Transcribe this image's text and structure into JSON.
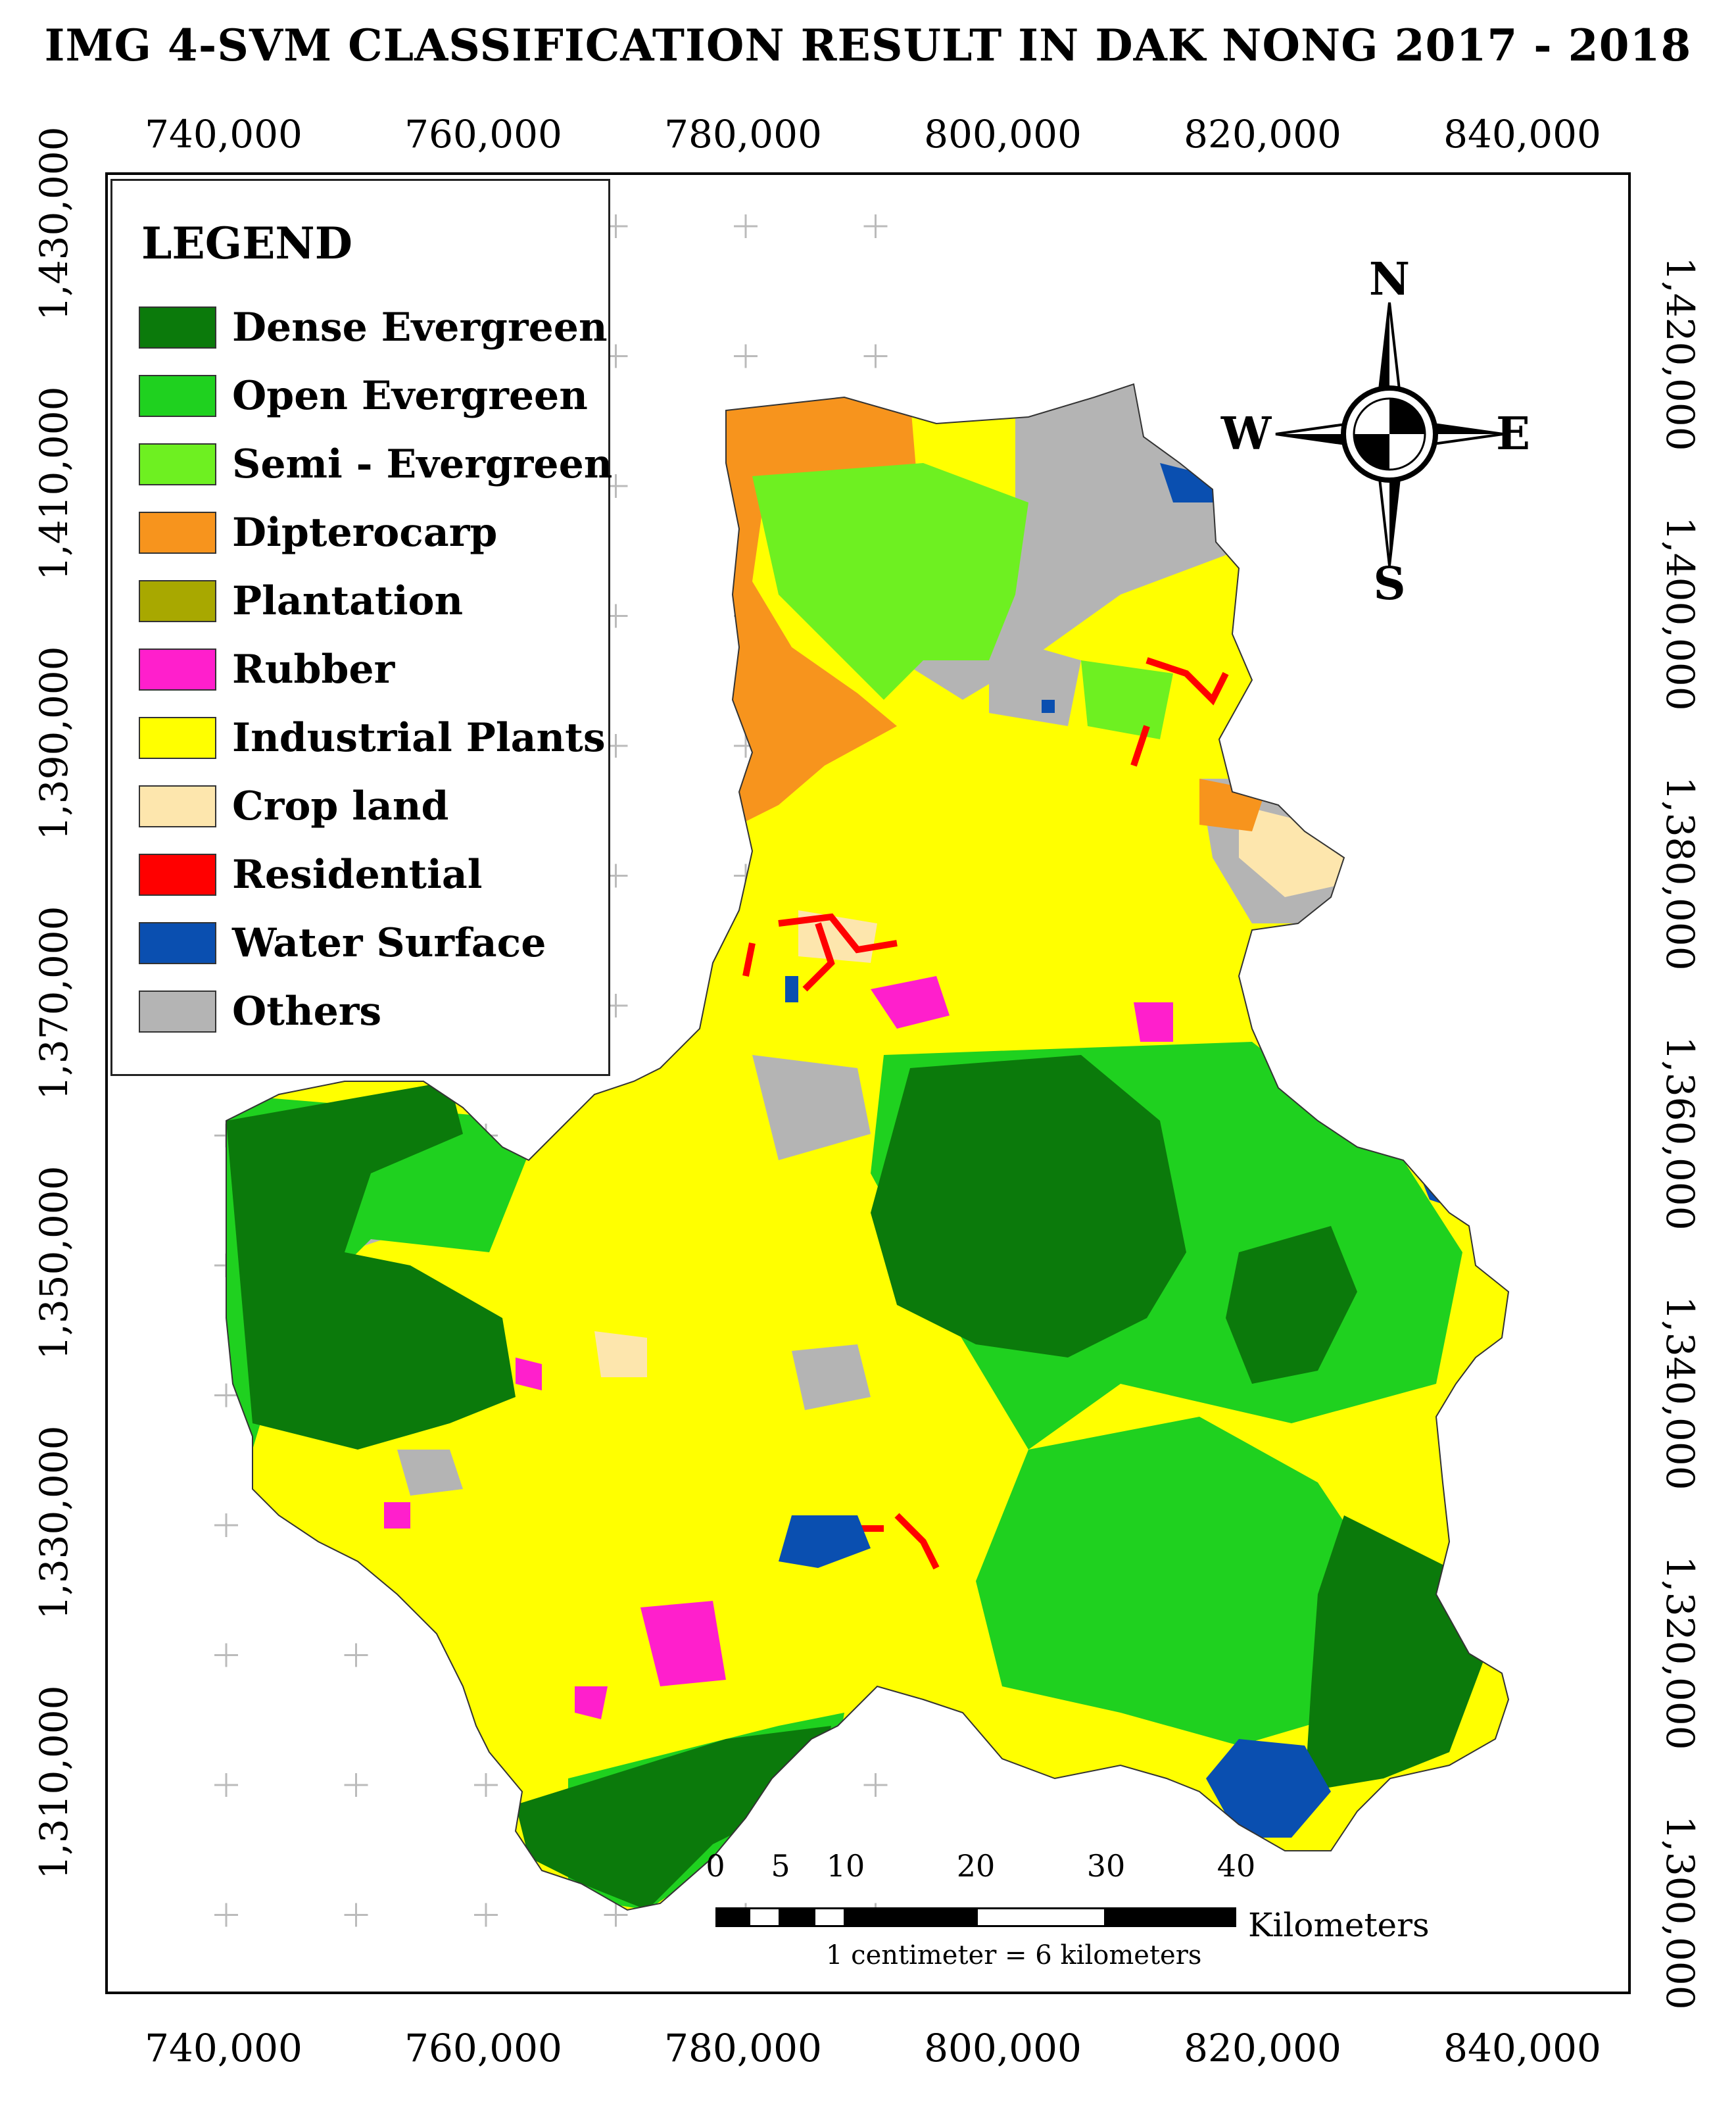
{
  "title": "IMG 4-SVM  CLASSIFICATION RESULT IN DAK NONG 2017 - 2018",
  "x_labels": [
    "740,000",
    "760,000",
    "780,000",
    "800,000",
    "820,000",
    "840,000"
  ],
  "y_labels_left": [
    "1,430,000",
    "1,410,000",
    "1,390,000",
    "1,370,000",
    "1,350,000",
    "1,330,000",
    "1,310,000"
  ],
  "y_labels_right": [
    "1,420,000",
    "1,400,000",
    "1,380,000",
    "1,360,000",
    "1,340,000",
    "1,320,000",
    "1,300,000"
  ],
  "legend": {
    "title": "LEGEND",
    "items": [
      {
        "label": "Dense Evergreen",
        "color": "#0b7a0b"
      },
      {
        "label": "Open Evergreen",
        "color": "#1fd11f"
      },
      {
        "label": "Semi - Evergreen",
        "color": "#6ef021"
      },
      {
        "label": "Dipterocarp",
        "color": "#f7941d"
      },
      {
        "label": "Plantation",
        "color": "#a8a800"
      },
      {
        "label": "Rubber",
        "color": "#ff1fcc"
      },
      {
        "label": "Industrial Plants",
        "color": "#ffff00"
      },
      {
        "label": "Crop land",
        "color": "#fde6ad"
      },
      {
        "label": "Residential",
        "color": "#ff0000"
      },
      {
        "label": "Water Surface",
        "color": "#0a4fb0"
      },
      {
        "label": "Others",
        "color": "#b4b4b4"
      }
    ]
  },
  "compass": {
    "n": "N",
    "s": "S",
    "e": "E",
    "w": "W"
  },
  "scale": {
    "ticks": [
      "0",
      "5",
      "10",
      "20",
      "30",
      "40"
    ],
    "unit": "Kilometers",
    "note": "1 centimeter = 6 kilometers"
  }
}
